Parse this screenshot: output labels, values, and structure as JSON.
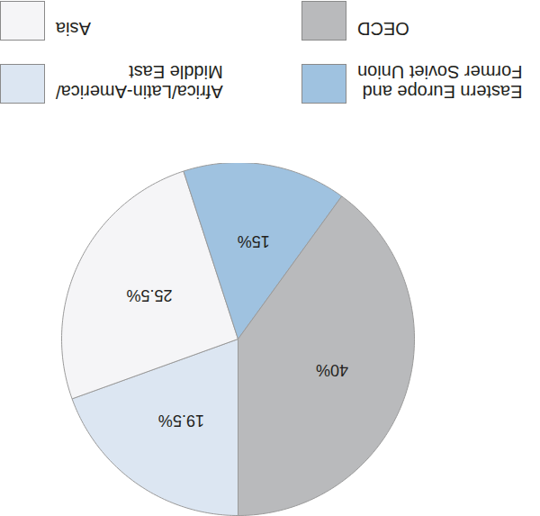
{
  "chart_data": {
    "type": "pie",
    "categories": [
      "Africa/Latin-America/\nMiddle East",
      "Asia",
      "Eastern Europe and\nFormer Soviet Union",
      "OECD"
    ],
    "values": [
      19.5,
      25.5,
      15,
      40
    ],
    "value_labels": [
      "19.5%",
      "25.5%",
      "15%",
      "40%"
    ],
    "colors": [
      "#dce6f2",
      "#f5f5f7",
      "#9fc2e0",
      "#b9babc"
    ],
    "data_labels": true
  }
}
